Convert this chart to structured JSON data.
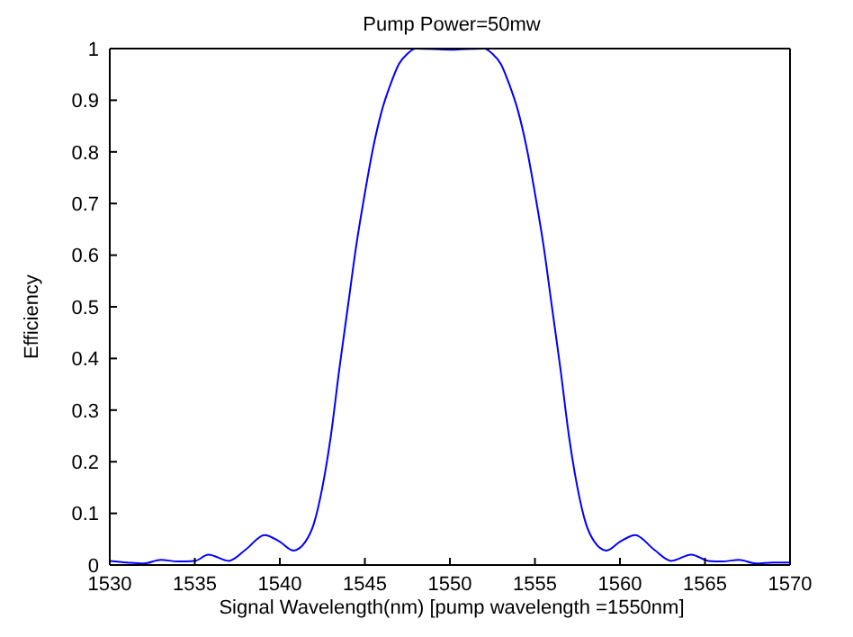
{
  "chart_data": {
    "type": "line",
    "title": "Pump Power=50mw",
    "xlabel": "Signal Wavelength(nm)  [pump wavelength =1550nm]",
    "ylabel": "Efficiency",
    "x": [
      1530,
      1531,
      1532,
      1533,
      1534,
      1535,
      1535.8,
      1537,
      1538,
      1539.1,
      1540,
      1540.8,
      1541.5,
      1542,
      1542.5,
      1543,
      1543.5,
      1544,
      1544.5,
      1545,
      1545.5,
      1546,
      1546.5,
      1547,
      1547.5,
      1548,
      1550,
      1552,
      1552.5,
      1553,
      1553.5,
      1554,
      1554.5,
      1555,
      1555.5,
      1556,
      1556.5,
      1557,
      1557.5,
      1558,
      1558.5,
      1559.2,
      1560,
      1560.9,
      1562,
      1563,
      1564.2,
      1565.2,
      1566,
      1567,
      1568,
      1569,
      1570
    ],
    "series": [
      {
        "color": "#0000ff",
        "values": [
          0.008,
          0.005,
          0.003,
          0.01,
          0.007,
          0.008,
          0.02,
          0.008,
          0.03,
          0.058,
          0.045,
          0.028,
          0.045,
          0.08,
          0.15,
          0.25,
          0.38,
          0.5,
          0.62,
          0.72,
          0.81,
          0.88,
          0.93,
          0.97,
          0.99,
          1.0,
          0.998,
          1.0,
          0.99,
          0.97,
          0.93,
          0.88,
          0.81,
          0.72,
          0.62,
          0.5,
          0.38,
          0.25,
          0.15,
          0.08,
          0.045,
          0.028,
          0.045,
          0.058,
          0.03,
          0.008,
          0.02,
          0.008,
          0.007,
          0.01,
          0.003,
          0.005,
          0.005
        ]
      }
    ],
    "xlim": [
      1530,
      1570
    ],
    "xticks": [
      1530,
      1535,
      1540,
      1545,
      1550,
      1555,
      1560,
      1565,
      1570
    ],
    "ylim": [
      0,
      1
    ],
    "yticks": [
      0,
      0.1,
      0.2,
      0.3,
      0.4,
      0.5,
      0.6,
      0.7,
      0.8,
      0.9,
      1
    ],
    "grid": false,
    "legend": false,
    "marker": "none",
    "line_style": "solid"
  }
}
